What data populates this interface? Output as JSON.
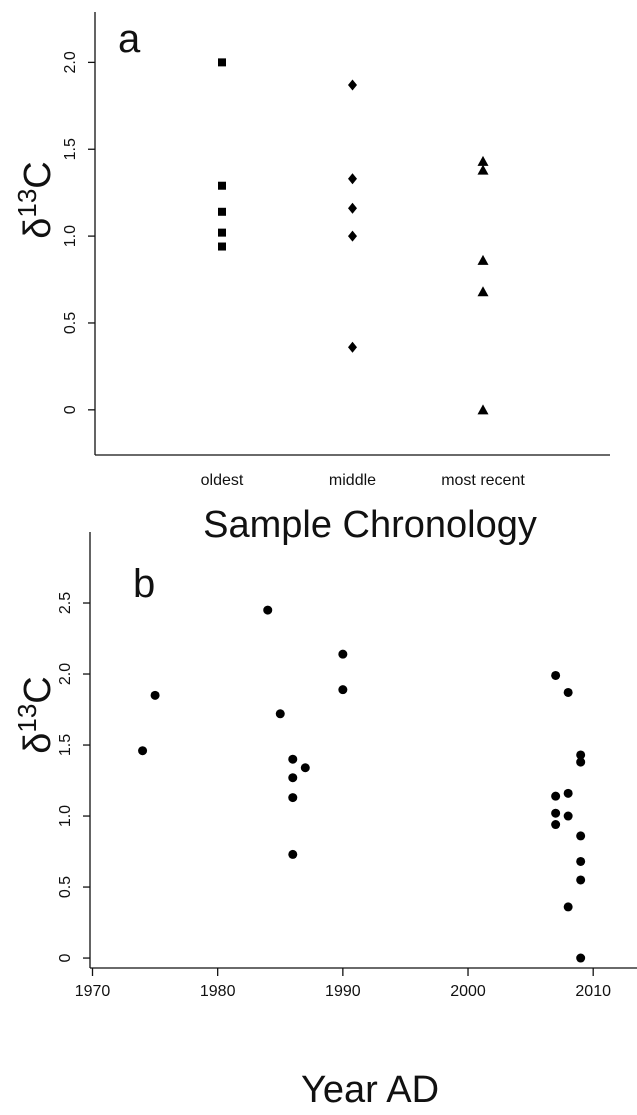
{
  "chart_data": [
    {
      "type": "strip",
      "panel": "a",
      "ylabel": [
        "δ",
        "13",
        "C"
      ],
      "xlabel": "Sample Chronology",
      "categories": [
        "oldest",
        "middle",
        "most recent"
      ],
      "markers": [
        "square",
        "diamond",
        "triangle"
      ],
      "color": "#000000",
      "values": [
        [
          2.0,
          1.29,
          1.14,
          1.02,
          0.94
        ],
        [
          1.87,
          1.33,
          1.16,
          1.0,
          0.36
        ],
        [
          1.43,
          1.38,
          0.86,
          0.68,
          0.0
        ]
      ],
      "ylim": [
        -0.26,
        2.29
      ],
      "yticks": [
        0,
        0.5,
        {
          "value": 1,
          "label": "1.0"
        },
        1.5,
        {
          "value": 2,
          "label": "2.0"
        }
      ]
    },
    {
      "type": "scatter",
      "panel": "b",
      "ylabel": [
        "δ",
        "13",
        "C"
      ],
      "xlabel": "Year AD",
      "color": "#000000",
      "x": [
        1974,
        1975,
        1984,
        1985,
        1986,
        1986,
        1986,
        1986,
        1987,
        1990,
        1990,
        2007,
        2007,
        2007,
        2007,
        2008,
        2008,
        2008,
        2008,
        2009,
        2009,
        2009,
        2009,
        2009,
        2009
      ],
      "values": [
        1.46,
        1.85,
        2.45,
        1.72,
        1.4,
        1.27,
        1.13,
        0.73,
        1.34,
        2.14,
        1.89,
        1.99,
        1.14,
        1.02,
        0.94,
        1.87,
        1.16,
        1.0,
        0.36,
        1.43,
        1.38,
        0.86,
        0.68,
        0.55,
        0.0
      ],
      "xlim": [
        1969.8,
        2013.5
      ],
      "xticks": [
        1970,
        1980,
        1990,
        2000,
        2010
      ],
      "ylim": [
        -0.07,
        3.0
      ],
      "yticks": [
        0,
        0.5,
        {
          "value": 1,
          "label": "1.0"
        },
        1.5,
        {
          "value": 2,
          "label": "2.0"
        },
        2.5
      ]
    }
  ]
}
